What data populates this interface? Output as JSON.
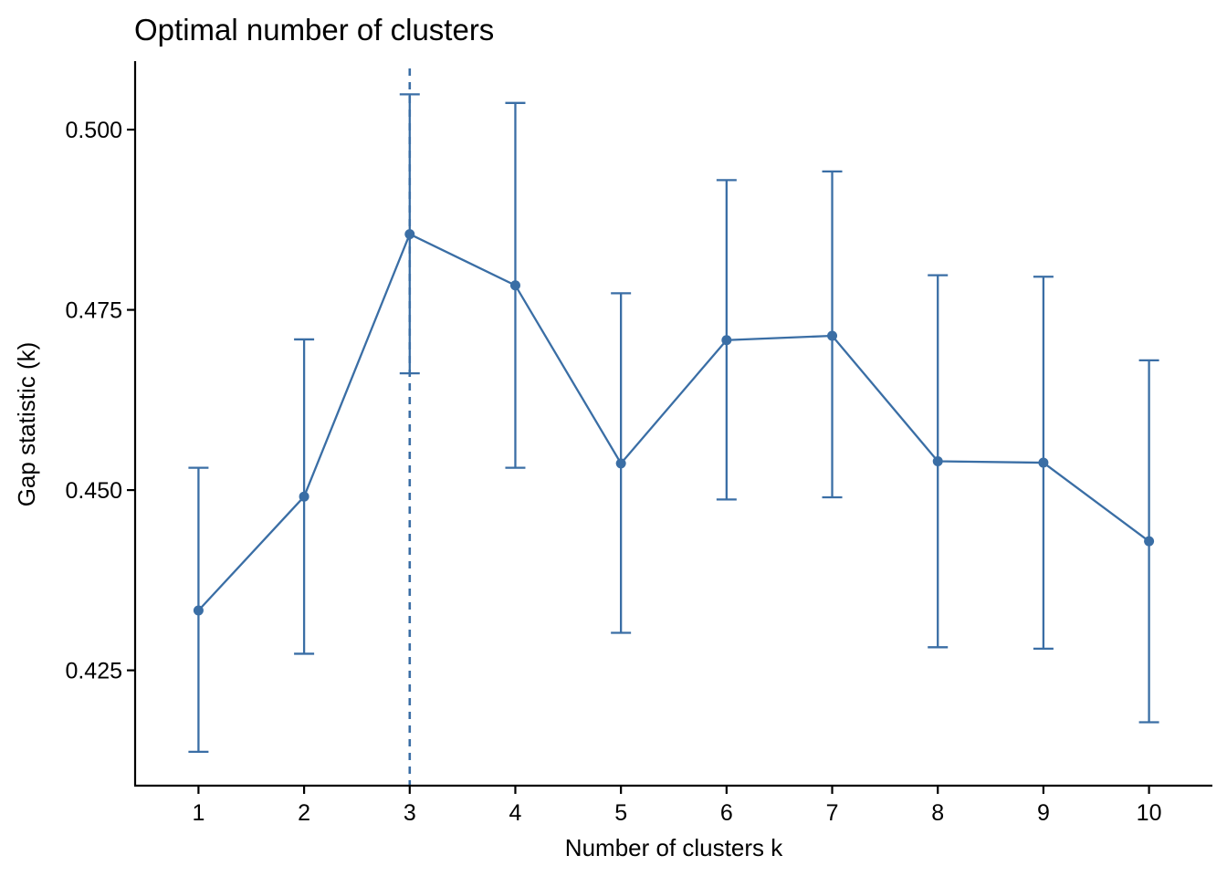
{
  "colors": {
    "series": "#3a6ea5",
    "axis": "#000000",
    "background": "#ffffff"
  },
  "chart_data": {
    "type": "line",
    "title": "Optimal number of clusters",
    "xlabel": "Number of clusters k",
    "ylabel": "Gap statistic (k)",
    "x": [
      1,
      2,
      3,
      4,
      5,
      6,
      7,
      8,
      9,
      10
    ],
    "x_tick_labels": [
      "1",
      "2",
      "3",
      "4",
      "5",
      "6",
      "7",
      "8",
      "9",
      "10"
    ],
    "y_ticks": [
      0.425,
      0.45,
      0.475,
      0.5
    ],
    "y_tick_labels": [
      "0.425",
      "0.450",
      "0.475",
      "0.500"
    ],
    "xlim": [
      0.4,
      10.6
    ],
    "ylim": [
      0.409,
      0.5095
    ],
    "optimal_k": 3,
    "series": [
      {
        "values": [
          0.4333,
          0.4491,
          0.4855,
          0.4784,
          0.4537,
          0.4708,
          0.4714,
          0.454,
          0.4538,
          0.4429
        ],
        "error_lower": [
          0.4137,
          0.4273,
          0.4662,
          0.4531,
          0.4302,
          0.4487,
          0.449,
          0.4282,
          0.428,
          0.4178
        ],
        "error_upper": [
          0.4531,
          0.4709,
          0.5049,
          0.5037,
          0.4773,
          0.493,
          0.4942,
          0.4798,
          0.4796,
          0.468
        ]
      }
    ],
    "grid": false,
    "legend": "none"
  }
}
